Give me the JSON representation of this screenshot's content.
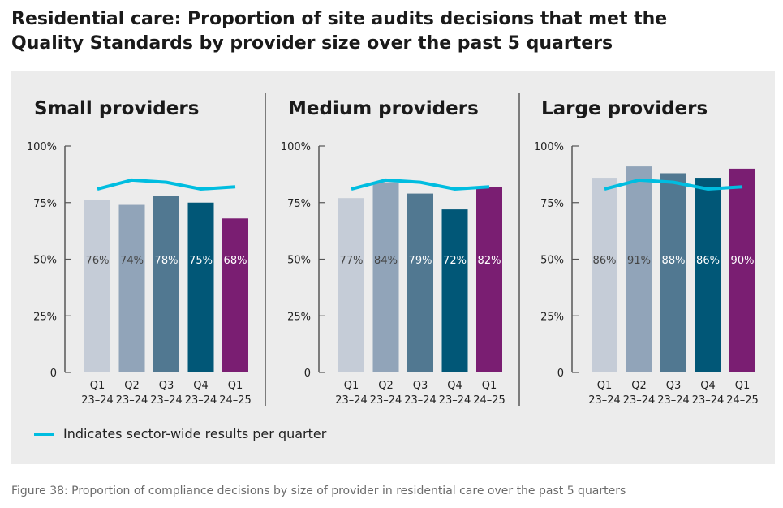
{
  "title": "Residential care: Proportion of site audits decisions that met the Quality Standards by provider size over the past 5 quarters",
  "caption": "Figure 38: Proportion of compliance decisions by size of provider in residential care over the past 5 quarters",
  "legend": {
    "label": "Indicates sector-wide results per quarter",
    "color": "#00bde0"
  },
  "colors": [
    "#c5ccd7",
    "#91a4b9",
    "#517891",
    "#015777",
    "#7a1e72"
  ],
  "chart_data": [
    {
      "type": "bar",
      "title": "Small providers",
      "categories": [
        [
          "Q1",
          "23–24"
        ],
        [
          "Q2",
          "23–24"
        ],
        [
          "Q3",
          "23–24"
        ],
        [
          "Q4",
          "23–24"
        ],
        [
          "Q1",
          "24–25"
        ]
      ],
      "values": [
        76,
        74,
        78,
        75,
        68
      ],
      "labels": [
        "76%",
        "74%",
        "78%",
        "75%",
        "68%"
      ],
      "line": {
        "name": "Indicates sector-wide results per quarter",
        "values": [
          81,
          85,
          84,
          81,
          82
        ]
      },
      "ylim": [
        0,
        100
      ],
      "yticks": [
        "0",
        "25%",
        "50%",
        "75%",
        "100%"
      ]
    },
    {
      "type": "bar",
      "title": "Medium providers",
      "categories": [
        [
          "Q1",
          "23–24"
        ],
        [
          "Q2",
          "23–24"
        ],
        [
          "Q3",
          "23–24"
        ],
        [
          "Q4",
          "23–24"
        ],
        [
          "Q1",
          "24–25"
        ]
      ],
      "values": [
        77,
        84,
        79,
        72,
        82
      ],
      "labels": [
        "77%",
        "84%",
        "79%",
        "72%",
        "82%"
      ],
      "line": {
        "name": "Indicates sector-wide results per quarter",
        "values": [
          81,
          85,
          84,
          81,
          82
        ]
      },
      "ylim": [
        0,
        100
      ],
      "yticks": [
        "0",
        "25%",
        "50%",
        "75%",
        "100%"
      ]
    },
    {
      "type": "bar",
      "title": "Large providers",
      "categories": [
        [
          "Q1",
          "23–24"
        ],
        [
          "Q2",
          "23–24"
        ],
        [
          "Q3",
          "23–24"
        ],
        [
          "Q4",
          "23–24"
        ],
        [
          "Q1",
          "24–25"
        ]
      ],
      "values": [
        86,
        91,
        88,
        86,
        90
      ],
      "labels": [
        "86%",
        "91%",
        "88%",
        "86%",
        "90%"
      ],
      "line": {
        "name": "Indicates sector-wide results per quarter",
        "values": [
          81,
          85,
          84,
          81,
          82
        ]
      },
      "ylim": [
        0,
        100
      ],
      "yticks": [
        "0",
        "25%",
        "50%",
        "75%",
        "100%"
      ]
    }
  ]
}
